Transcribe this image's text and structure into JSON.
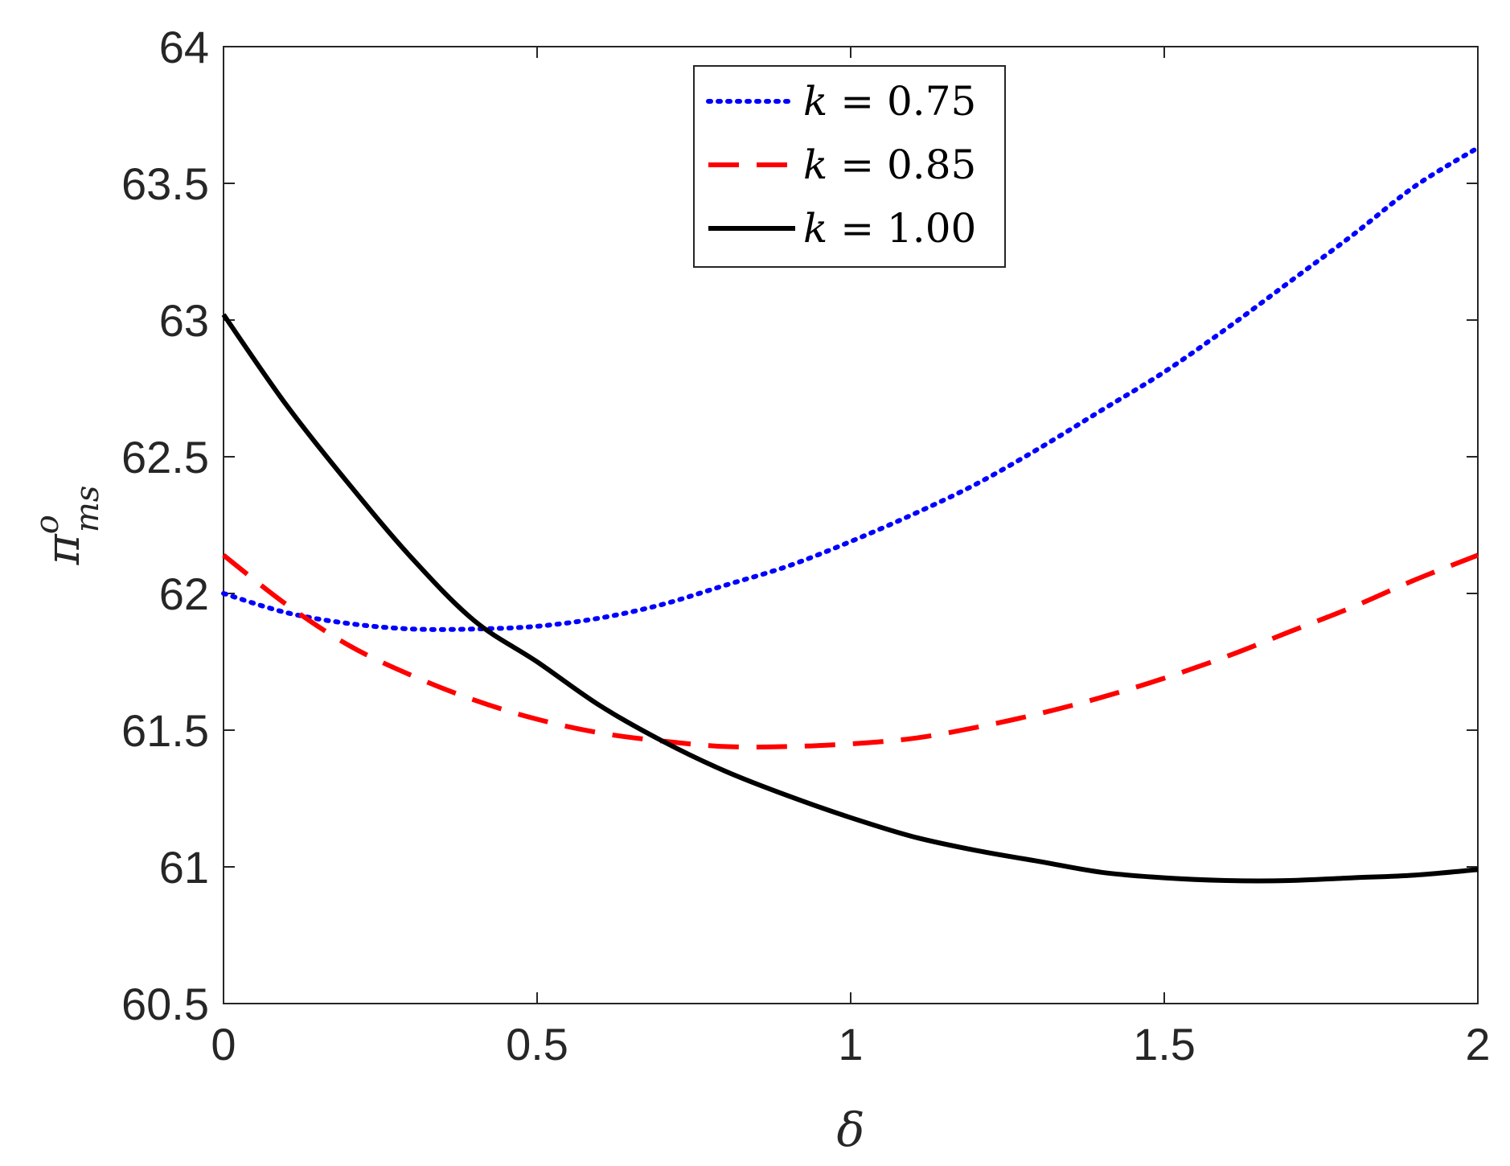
{
  "chart_data": {
    "type": "line",
    "xlabel": "δ",
    "ylabel": {
      "base": "π",
      "sup": "o",
      "sub": "ms"
    },
    "xlim": [
      0,
      2
    ],
    "ylim": [
      60.5,
      64
    ],
    "xticks": [
      0,
      0.5,
      1,
      1.5,
      2
    ],
    "xtick_labels": [
      "0",
      "0.5",
      "1",
      "1.5",
      "2"
    ],
    "yticks": [
      60.5,
      61,
      61.5,
      62,
      62.5,
      63,
      63.5,
      64
    ],
    "ytick_labels": [
      "60.5",
      "61",
      "61.5",
      "62",
      "62.5",
      "63",
      "63.5",
      "64"
    ],
    "grid": false,
    "legend_position": "top-center",
    "series": [
      {
        "name": "k = 0.75",
        "legend_var": "k",
        "legend_rest": " = 0.75",
        "color": "#0000ff",
        "style": "dotted",
        "x": [
          0,
          0.1,
          0.2,
          0.3,
          0.4,
          0.5,
          0.6,
          0.7,
          0.8,
          0.9,
          1.0,
          1.1,
          1.2,
          1.3,
          1.4,
          1.5,
          1.6,
          1.7,
          1.8,
          1.9,
          2.0
        ],
        "y": [
          62.0,
          61.93,
          61.89,
          61.87,
          61.87,
          61.88,
          61.91,
          61.96,
          62.03,
          62.1,
          62.19,
          62.29,
          62.4,
          62.53,
          62.67,
          62.81,
          62.97,
          63.14,
          63.31,
          63.49,
          63.63
        ]
      },
      {
        "name": "k = 0.85",
        "legend_var": "k",
        "legend_rest": " = 0.85",
        "color": "#ff0000",
        "style": "dashed",
        "x": [
          0,
          0.1,
          0.2,
          0.3,
          0.4,
          0.5,
          0.6,
          0.7,
          0.8,
          0.9,
          1.0,
          1.1,
          1.2,
          1.3,
          1.4,
          1.5,
          1.6,
          1.7,
          1.8,
          1.9,
          2.0
        ],
        "y": [
          62.14,
          61.96,
          61.81,
          61.7,
          61.61,
          61.54,
          61.49,
          61.46,
          61.44,
          61.44,
          61.45,
          61.47,
          61.51,
          61.56,
          61.62,
          61.69,
          61.77,
          61.86,
          61.95,
          62.05,
          62.14
        ]
      },
      {
        "name": "k = 1.00",
        "legend_var": "k",
        "legend_rest": " = 1.00",
        "color": "#000000",
        "style": "solid",
        "x": [
          0,
          0.1,
          0.2,
          0.3,
          0.4,
          0.5,
          0.6,
          0.7,
          0.8,
          0.9,
          1.0,
          1.1,
          1.2,
          1.3,
          1.4,
          1.5,
          1.6,
          1.7,
          1.8,
          1.9,
          2.0
        ],
        "y": [
          63.02,
          62.69,
          62.4,
          62.13,
          61.9,
          61.75,
          61.59,
          61.46,
          61.35,
          61.26,
          61.18,
          61.11,
          61.06,
          61.02,
          60.98,
          60.96,
          60.95,
          60.95,
          60.96,
          60.97,
          60.99
        ]
      }
    ]
  }
}
